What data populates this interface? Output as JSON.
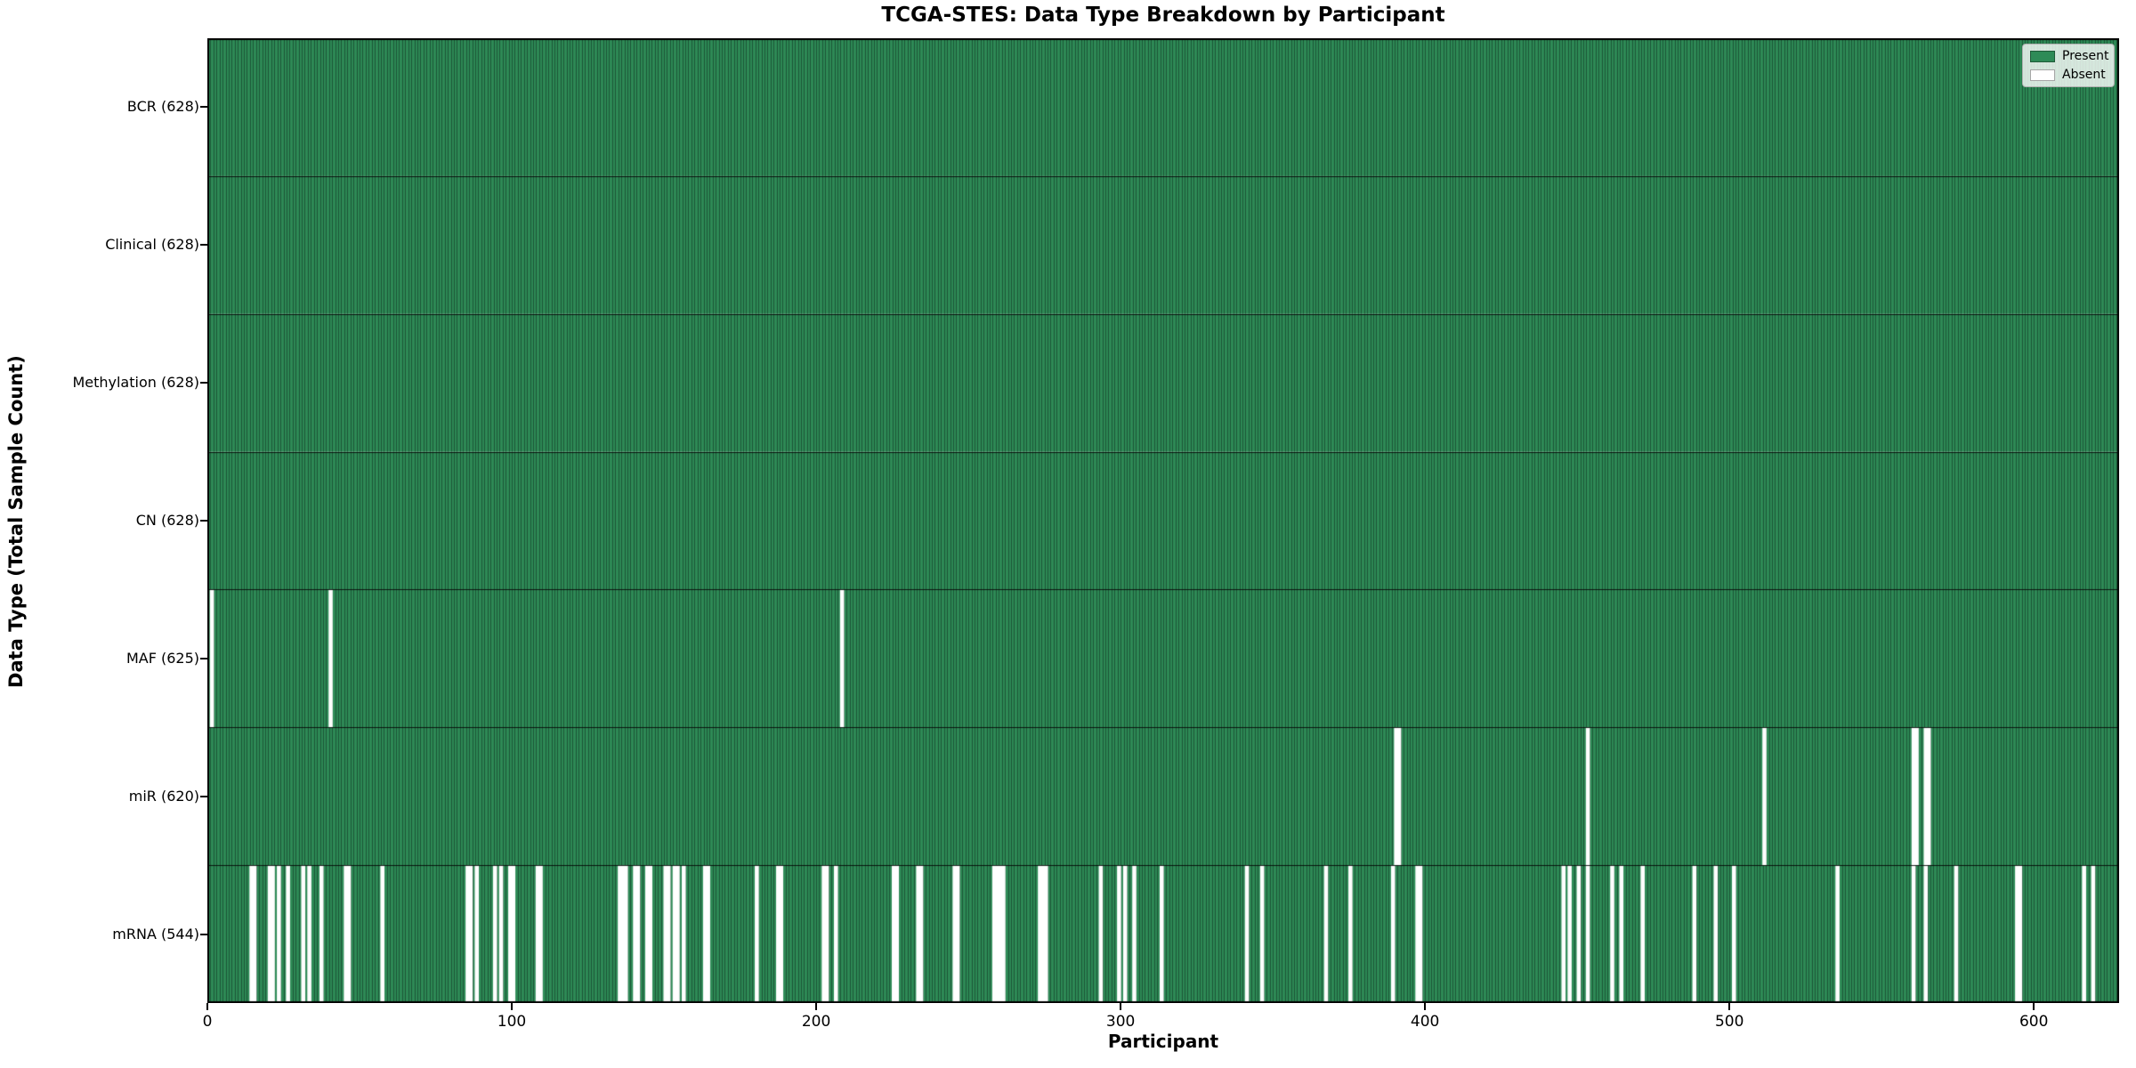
{
  "colors": {
    "present": "#2e8b57",
    "absent": "#ffffff",
    "bar_edge": "rgba(0,0,0,0.45)",
    "row_divider": "rgba(0,0,0,0.85)",
    "plot_border": "#000000",
    "legend_border": "#b0b0b0"
  },
  "chart_data": {
    "type": "heatmap",
    "title": "TCGA-STES: Data Type Breakdown by Participant",
    "xlabel": "Participant",
    "ylabel": "Data Type (Total Sample Count)",
    "n_participants": 628,
    "x_ticks": [
      0,
      100,
      200,
      300,
      400,
      500,
      600
    ],
    "legend_position": "upper right",
    "grid": false,
    "legend": [
      {
        "label": "Present",
        "color": "#2e8b57"
      },
      {
        "label": "Absent",
        "color": "#ffffff"
      }
    ],
    "rows": [
      {
        "label": "BCR (628)",
        "data_type": "BCR",
        "present_count": 628,
        "absent_participants": []
      },
      {
        "label": "Clinical (628)",
        "data_type": "Clinical",
        "present_count": 628,
        "absent_participants": []
      },
      {
        "label": "Methylation (628)",
        "data_type": "Methylation",
        "present_count": 628,
        "absent_participants": []
      },
      {
        "label": "CN (628)",
        "data_type": "CN",
        "present_count": 628,
        "absent_participants": []
      },
      {
        "label": "MAF (625)",
        "data_type": "MAF",
        "present_count": 625,
        "absent_participants": [
          1,
          40,
          208
        ]
      },
      {
        "label": "miR (620)",
        "data_type": "miR",
        "present_count": 620,
        "absent_participants": [
          390,
          391,
          453,
          511,
          560,
          561,
          564,
          565
        ]
      },
      {
        "label": "mRNA (544)",
        "data_type": "mRNA",
        "present_count": 544,
        "absent_participants": [
          14,
          15,
          20,
          21,
          23,
          26,
          31,
          33,
          37,
          45,
          46,
          57,
          85,
          86,
          88,
          94,
          96,
          99,
          100,
          108,
          109,
          135,
          136,
          137,
          140,
          141,
          144,
          145,
          150,
          151,
          153,
          154,
          156,
          163,
          164,
          180,
          187,
          188,
          202,
          203,
          206,
          225,
          226,
          233,
          234,
          245,
          246,
          258,
          259,
          260,
          261,
          273,
          274,
          275,
          293,
          299,
          301,
          304,
          313,
          341,
          346,
          367,
          375,
          389,
          397,
          398,
          445,
          447,
          450,
          453,
          461,
          464,
          471,
          488,
          495,
          501,
          535,
          560,
          564,
          574,
          594,
          595,
          616,
          619
        ]
      }
    ]
  }
}
